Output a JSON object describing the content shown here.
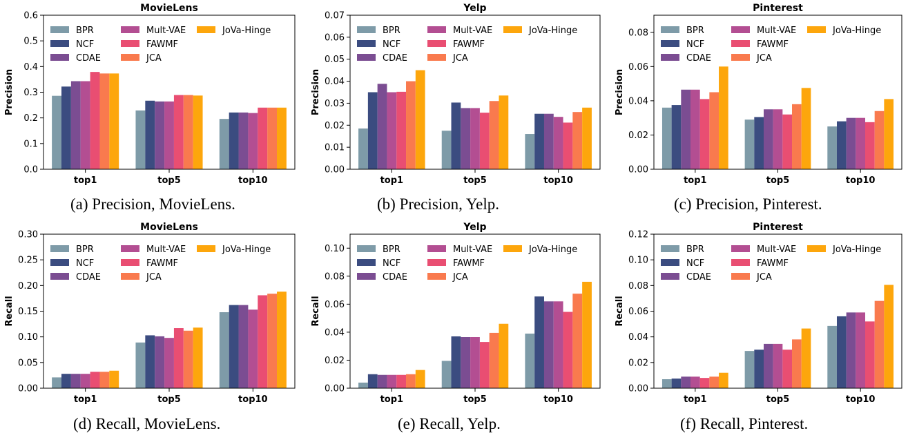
{
  "series_names": [
    "BPR",
    "NCF",
    "CDAE",
    "Mult-VAE",
    "FAWMF",
    "JCA",
    "JoVa-Hinge"
  ],
  "colors": {
    "BPR": "#7e9ba8",
    "NCF": "#3b4c80",
    "CDAE": "#7b4d92",
    "Mult-VAE": "#b34e92",
    "FAWMF": "#e94e72",
    "JCA": "#f97a4e",
    "JoVa-Hinge": "#fda60c"
  },
  "chart_data": [
    {
      "type": "bar",
      "title": "MovieLens",
      "ylabel": "Precision",
      "xlabel": "",
      "categories": [
        "top1",
        "top5",
        "top10"
      ],
      "ylim": [
        0,
        0.6
      ],
      "yticks": [
        "0.0",
        "0.1",
        "0.2",
        "0.3",
        "0.4",
        "0.5",
        "0.6"
      ],
      "legend": "top-left",
      "caption": "(a) Precision, MovieLens.",
      "series": [
        {
          "name": "BPR",
          "values": [
            0.286,
            0.229,
            0.196
          ]
        },
        {
          "name": "NCF",
          "values": [
            0.322,
            0.267,
            0.221
          ]
        },
        {
          "name": "CDAE",
          "values": [
            0.343,
            0.264,
            0.221
          ]
        },
        {
          "name": "Mult-VAE",
          "values": [
            0.343,
            0.264,
            0.219
          ]
        },
        {
          "name": "FAWMF",
          "values": [
            0.379,
            0.289,
            0.24
          ]
        },
        {
          "name": "JCA",
          "values": [
            0.373,
            0.289,
            0.24
          ]
        },
        {
          "name": "JoVa-Hinge",
          "values": [
            0.373,
            0.287,
            0.24
          ]
        }
      ]
    },
    {
      "type": "bar",
      "title": "Yelp",
      "ylabel": "Precision",
      "xlabel": "",
      "categories": [
        "top1",
        "top5",
        "top10"
      ],
      "ylim": [
        0,
        0.07
      ],
      "yticks": [
        "0.00",
        "0.01",
        "0.02",
        "0.03",
        "0.04",
        "0.05",
        "0.06",
        "0.07"
      ],
      "legend": "top-left",
      "caption": "(b) Precision, Yelp.",
      "series": [
        {
          "name": "BPR",
          "values": [
            0.0185,
            0.0175,
            0.016
          ]
        },
        {
          "name": "NCF",
          "values": [
            0.035,
            0.0303,
            0.0252
          ]
        },
        {
          "name": "CDAE",
          "values": [
            0.0388,
            0.0278,
            0.0252
          ]
        },
        {
          "name": "Mult-VAE",
          "values": [
            0.035,
            0.0278,
            0.0238
          ]
        },
        {
          "name": "FAWMF",
          "values": [
            0.0352,
            0.0257,
            0.0212
          ]
        },
        {
          "name": "JCA",
          "values": [
            0.04,
            0.031,
            0.026
          ]
        },
        {
          "name": "JoVa-Hinge",
          "values": [
            0.045,
            0.0335,
            0.028
          ]
        }
      ]
    },
    {
      "type": "bar",
      "title": "Pinterest",
      "ylabel": "Precision",
      "xlabel": "",
      "categories": [
        "top1",
        "top5",
        "top10"
      ],
      "ylim": [
        0,
        0.09
      ],
      "yticks": [
        "0.00",
        "0.02",
        "0.04",
        "0.06",
        "0.08"
      ],
      "legend": "top-left",
      "caption": "(c) Precision, Pinterest.",
      "series": [
        {
          "name": "BPR",
          "values": [
            0.036,
            0.029,
            0.025
          ]
        },
        {
          "name": "NCF",
          "values": [
            0.0375,
            0.0305,
            0.028
          ]
        },
        {
          "name": "CDAE",
          "values": [
            0.0465,
            0.035,
            0.03
          ]
        },
        {
          "name": "Mult-VAE",
          "values": [
            0.0465,
            0.035,
            0.03
          ]
        },
        {
          "name": "FAWMF",
          "values": [
            0.041,
            0.032,
            0.0275
          ]
        },
        {
          "name": "JCA",
          "values": [
            0.045,
            0.038,
            0.034
          ]
        },
        {
          "name": "JoVa-Hinge",
          "values": [
            0.06,
            0.0475,
            0.041
          ]
        }
      ]
    },
    {
      "type": "bar",
      "title": "MovieLens",
      "ylabel": "Recall",
      "xlabel": "",
      "categories": [
        "top1",
        "top5",
        "top10"
      ],
      "ylim": [
        0,
        0.3
      ],
      "yticks": [
        "0.00",
        "0.05",
        "0.10",
        "0.15",
        "0.20",
        "0.25",
        "0.30"
      ],
      "legend": "top-left",
      "caption": "(d) Recall, MovieLens.",
      "series": [
        {
          "name": "BPR",
          "values": [
            0.021,
            0.089,
            0.148
          ]
        },
        {
          "name": "NCF",
          "values": [
            0.028,
            0.103,
            0.162
          ]
        },
        {
          "name": "CDAE",
          "values": [
            0.028,
            0.101,
            0.162
          ]
        },
        {
          "name": "Mult-VAE",
          "values": [
            0.028,
            0.098,
            0.153
          ]
        },
        {
          "name": "FAWMF",
          "values": [
            0.032,
            0.117,
            0.181
          ]
        },
        {
          "name": "JCA",
          "values": [
            0.032,
            0.112,
            0.184
          ]
        },
        {
          "name": "JoVa-Hinge",
          "values": [
            0.034,
            0.118,
            0.188
          ]
        }
      ]
    },
    {
      "type": "bar",
      "title": "Yelp",
      "ylabel": "Recall",
      "xlabel": "",
      "categories": [
        "top1",
        "top5",
        "top10"
      ],
      "ylim": [
        0,
        0.11
      ],
      "yticks": [
        "0.00",
        "0.02",
        "0.04",
        "0.06",
        "0.08",
        "0.10"
      ],
      "legend": "top-left",
      "caption": "(e) Recall, Yelp.",
      "series": [
        {
          "name": "BPR",
          "values": [
            0.004,
            0.0195,
            0.039
          ]
        },
        {
          "name": "NCF",
          "values": [
            0.01,
            0.037,
            0.0655
          ]
        },
        {
          "name": "CDAE",
          "values": [
            0.0095,
            0.0365,
            0.062
          ]
        },
        {
          "name": "Mult-VAE",
          "values": [
            0.0095,
            0.0365,
            0.062
          ]
        },
        {
          "name": "FAWMF",
          "values": [
            0.0095,
            0.033,
            0.0545
          ]
        },
        {
          "name": "JCA",
          "values": [
            0.01,
            0.0395,
            0.0675
          ]
        },
        {
          "name": "JoVa-Hinge",
          "values": [
            0.013,
            0.046,
            0.076
          ]
        }
      ]
    },
    {
      "type": "bar",
      "title": "Pinterest",
      "ylabel": "Recall",
      "xlabel": "",
      "categories": [
        "top1",
        "top5",
        "top10"
      ],
      "ylim": [
        0,
        0.12
      ],
      "yticks": [
        "0.00",
        "0.02",
        "0.04",
        "0.06",
        "0.08",
        "0.10",
        "0.12"
      ],
      "legend": "top-left",
      "caption": "(f) Recall, Pinterest.",
      "series": [
        {
          "name": "BPR",
          "values": [
            0.007,
            0.029,
            0.0485
          ]
        },
        {
          "name": "NCF",
          "values": [
            0.0075,
            0.03,
            0.056
          ]
        },
        {
          "name": "CDAE",
          "values": [
            0.009,
            0.0345,
            0.059
          ]
        },
        {
          "name": "Mult-VAE",
          "values": [
            0.009,
            0.0345,
            0.059
          ]
        },
        {
          "name": "FAWMF",
          "values": [
            0.008,
            0.03,
            0.052
          ]
        },
        {
          "name": "JCA",
          "values": [
            0.009,
            0.038,
            0.068
          ]
        },
        {
          "name": "JoVa-Hinge",
          "values": [
            0.012,
            0.0465,
            0.0805
          ]
        }
      ]
    }
  ]
}
